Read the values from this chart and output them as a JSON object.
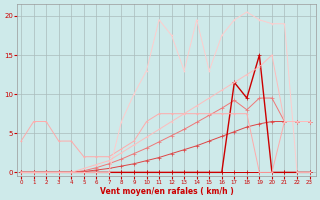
{
  "background_color": "#ceeaea",
  "grid_color": "#aabcbc",
  "x_label": "Vent moyen/en rafales ( km/h )",
  "x_ticks": [
    0,
    1,
    2,
    3,
    4,
    5,
    6,
    7,
    8,
    9,
    10,
    11,
    12,
    13,
    14,
    15,
    16,
    17,
    18,
    19,
    20,
    21,
    22,
    23
  ],
  "y_ticks": [
    0,
    5,
    10,
    15,
    20
  ],
  "xlim": [
    -0.3,
    23.5
  ],
  "ylim": [
    -0.5,
    21.5
  ],
  "series": [
    {
      "x": [
        0,
        1,
        2,
        3,
        4,
        5,
        6,
        7,
        8,
        9,
        10,
        11,
        12,
        13,
        14,
        15,
        16,
        17,
        18,
        19,
        20,
        21,
        22,
        23
      ],
      "y": [
        0,
        0,
        0,
        0,
        0,
        0,
        0,
        0,
        0,
        0,
        0,
        0,
        0,
        0,
        0,
        0,
        0,
        0,
        0,
        0,
        0,
        0,
        0,
        0
      ],
      "color": "#cc0000",
      "lw": 0.7,
      "marker": "+",
      "ms": 2.5
    },
    {
      "x": [
        0,
        1,
        2,
        3,
        4,
        5,
        6,
        7,
        8,
        9,
        10,
        11,
        12,
        13,
        14,
        15,
        16,
        17,
        18,
        19,
        20,
        21,
        22,
        23
      ],
      "y": [
        0,
        0,
        0,
        0,
        0,
        0.1,
        0.3,
        0.5,
        0.8,
        1.1,
        1.5,
        1.9,
        2.4,
        2.9,
        3.4,
        4.0,
        4.6,
        5.2,
        5.8,
        6.2,
        6.5,
        6.5,
        6.5,
        6.5
      ],
      "color": "#dd4444",
      "lw": 0.7,
      "marker": "+",
      "ms": 2.5
    },
    {
      "x": [
        0,
        1,
        2,
        3,
        4,
        5,
        6,
        7,
        8,
        9,
        10,
        11,
        12,
        13,
        14,
        15,
        16,
        17,
        18,
        19,
        20,
        21,
        22,
        23
      ],
      "y": [
        0,
        0,
        0,
        0,
        0,
        0.2,
        0.6,
        1.1,
        1.7,
        2.4,
        3.1,
        3.9,
        4.7,
        5.5,
        6.4,
        7.3,
        8.2,
        9.2,
        8.0,
        9.5,
        9.5,
        6.5,
        6.5,
        6.5
      ],
      "color": "#ee7777",
      "lw": 0.7,
      "marker": "+",
      "ms": 2.5
    },
    {
      "x": [
        0,
        1,
        2,
        3,
        4,
        5,
        6,
        7,
        8,
        9,
        10,
        11,
        12,
        13,
        14,
        15,
        16,
        17,
        18,
        19,
        20,
        21,
        22,
        23
      ],
      "y": [
        0,
        0,
        0,
        0,
        0,
        0,
        0,
        0,
        0,
        0,
        0,
        0,
        0,
        0,
        0,
        0,
        0,
        11.5,
        9.5,
        15.0,
        0,
        0,
        0,
        0
      ],
      "color": "#cc0000",
      "lw": 1.0,
      "marker": "+",
      "ms": 3.0
    },
    {
      "x": [
        0,
        1,
        2,
        3,
        4,
        5,
        6,
        7,
        8,
        9,
        10,
        11,
        12,
        13,
        14,
        15,
        16,
        17,
        18,
        19,
        20,
        21,
        22,
        23
      ],
      "y": [
        4,
        6.5,
        6.5,
        4,
        4,
        2,
        2,
        2,
        3,
        4,
        6.5,
        7.5,
        7.5,
        7.5,
        7.5,
        7.5,
        7.5,
        7.5,
        7.5,
        0,
        0,
        6.5,
        6.5,
        6.5
      ],
      "color": "#ffaaaa",
      "lw": 0.7,
      "marker": "+",
      "ms": 2.0
    },
    {
      "x": [
        0,
        1,
        2,
        3,
        4,
        5,
        6,
        7,
        8,
        9,
        10,
        11,
        12,
        13,
        14,
        15,
        16,
        17,
        18,
        19,
        20,
        21,
        22,
        23
      ],
      "y": [
        0,
        0,
        0,
        0,
        0,
        0,
        0,
        0,
        6.5,
        10,
        13,
        19.5,
        17.5,
        13,
        19.5,
        13,
        17.5,
        19.5,
        20.5,
        19.5,
        19.0,
        19.0,
        0,
        0
      ],
      "color": "#ffcccc",
      "lw": 0.7,
      "marker": "+",
      "ms": 2.0
    },
    {
      "x": [
        0,
        1,
        2,
        3,
        4,
        5,
        6,
        7,
        8,
        9,
        10,
        11,
        12,
        13,
        14,
        15,
        16,
        17,
        18,
        19,
        20,
        21,
        22,
        23
      ],
      "y": [
        0,
        0,
        0,
        0,
        0,
        0.5,
        1.0,
        1.5,
        2.5,
        3.5,
        4.5,
        5.5,
        6.5,
        7.5,
        8.5,
        9.5,
        10.5,
        11.5,
        12.5,
        13.5,
        15.0,
        6.5,
        6.5,
        6.5
      ],
      "color": "#ffbbbb",
      "lw": 0.7,
      "marker": "+",
      "ms": 2.0
    }
  ]
}
